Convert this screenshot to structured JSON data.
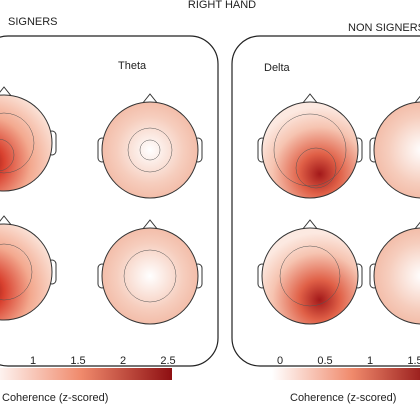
{
  "figure": {
    "title": "RIGHT HAND",
    "groups": [
      {
        "label": "SIGNERS",
        "band": "Theta",
        "colorbar": {
          "ticks": [
            "1",
            "1.5",
            "2",
            "2.5"
          ],
          "label": "Coherence (z-scored)"
        }
      },
      {
        "label": "NON SIGNERS",
        "band": "Delta",
        "colorbar": {
          "ticks": [
            "0",
            "0.5",
            "1",
            "1.5"
          ],
          "label": "Coherence (z-scored)"
        }
      }
    ]
  }
}
